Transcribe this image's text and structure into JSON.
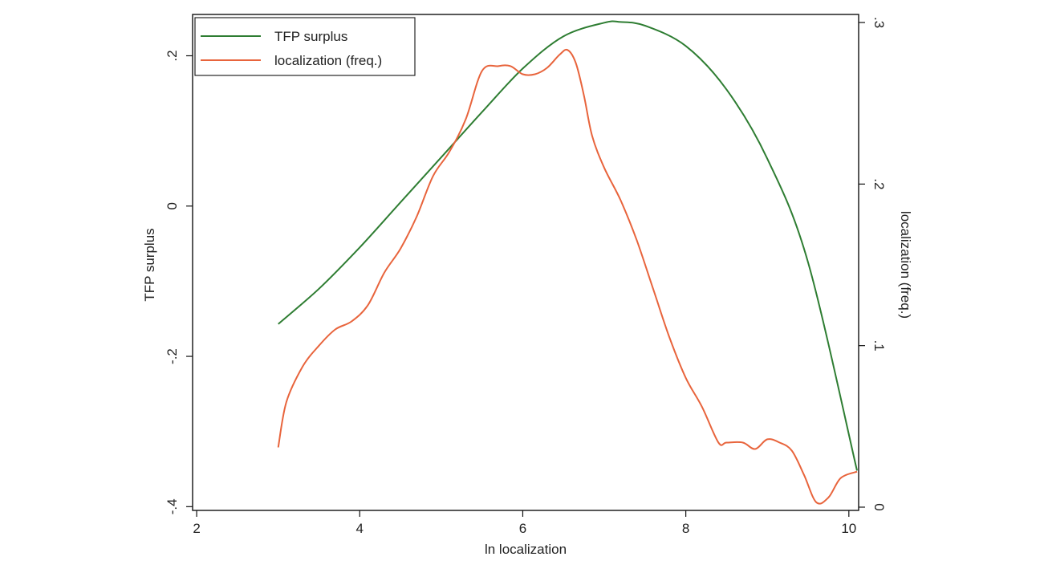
{
  "chart_data": {
    "type": "line",
    "title": "",
    "xlabel": "ln localization",
    "ylabel": "TFP surplus",
    "y2label": "localization (freq.)",
    "xlim": [
      1.95,
      10.12
    ],
    "ylim": [
      -0.405,
      0.255
    ],
    "y2lim": [
      -0.002,
      0.305
    ],
    "x_ticks": [
      2,
      4,
      6,
      8,
      10
    ],
    "x_tick_labels": [
      "2",
      "4",
      "6",
      "8",
      "10"
    ],
    "y_ticks": [
      -0.4,
      -0.2,
      0,
      0.2
    ],
    "y_tick_labels": [
      "-.4",
      "-.2",
      "0",
      ".2"
    ],
    "y2_ticks": [
      0,
      0.1,
      0.2,
      0.3
    ],
    "y2_tick_labels": [
      "0",
      ".1",
      ".2",
      ".3"
    ],
    "grid": false,
    "legend_position": "top-left",
    "series": [
      {
        "name": "TFP surplus",
        "axis": "left",
        "color": "#2e7d32",
        "x": [
          3.0,
          3.5,
          4.0,
          4.5,
          5.0,
          5.5,
          6.0,
          6.5,
          7.0,
          7.2,
          7.5,
          8.0,
          8.5,
          9.0,
          9.5,
          10.1
        ],
        "y": [
          -0.157,
          -0.11,
          -0.055,
          0.005,
          0.065,
          0.125,
          0.183,
          0.226,
          0.244,
          0.245,
          0.24,
          0.213,
          0.155,
          0.063,
          -0.075,
          -0.352
        ]
      },
      {
        "name": "localization (freq.)",
        "axis": "right",
        "color": "#e8643c",
        "x": [
          3.0,
          3.1,
          3.3,
          3.5,
          3.7,
          3.9,
          4.1,
          4.3,
          4.5,
          4.7,
          4.9,
          5.1,
          5.3,
          5.5,
          5.7,
          5.85,
          6.0,
          6.15,
          6.3,
          6.45,
          6.55,
          6.65,
          6.75,
          6.85,
          7.0,
          7.2,
          7.4,
          7.6,
          7.8,
          8.0,
          8.2,
          8.4,
          8.5,
          8.7,
          8.85,
          9.0,
          9.15,
          9.3,
          9.45,
          9.6,
          9.75,
          9.9,
          10.1
        ],
        "y": [
          0.037,
          0.065,
          0.087,
          0.1,
          0.11,
          0.115,
          0.125,
          0.145,
          0.16,
          0.18,
          0.205,
          0.22,
          0.24,
          0.27,
          0.273,
          0.273,
          0.268,
          0.268,
          0.272,
          0.28,
          0.283,
          0.275,
          0.255,
          0.23,
          0.21,
          0.19,
          0.165,
          0.135,
          0.105,
          0.08,
          0.062,
          0.04,
          0.04,
          0.04,
          0.036,
          0.042,
          0.04,
          0.035,
          0.02,
          0.003,
          0.006,
          0.018,
          0.022
        ]
      }
    ]
  }
}
